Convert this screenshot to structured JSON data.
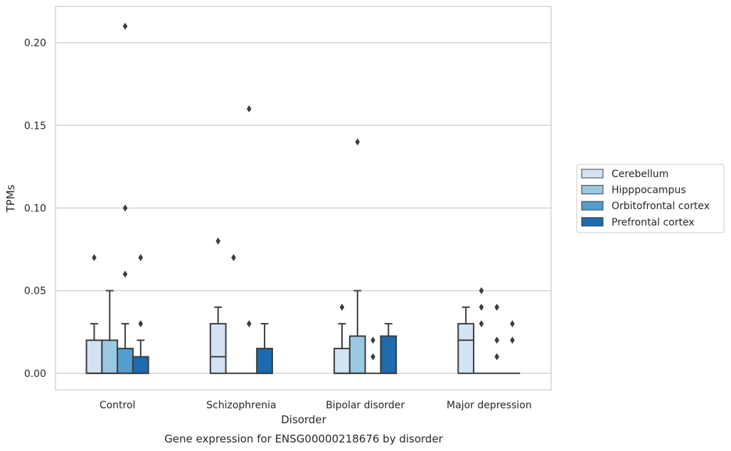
{
  "chart_data": {
    "type": "box",
    "title": "",
    "caption": "Gene expression for ENSG00000218676 by disorder",
    "xlabel": "Disorder",
    "ylabel": "TPMs",
    "ylim": [
      -0.01,
      0.222
    ],
    "yticks": [
      0.0,
      0.05,
      0.1,
      0.15,
      0.2
    ],
    "ytick_labels": [
      "0.00",
      "0.05",
      "0.10",
      "0.15",
      "0.20"
    ],
    "grid": "horizontal",
    "legend_position": "right",
    "categories": [
      "Control",
      "Schizophrenia",
      "Bipolar disorder",
      "Major depression"
    ],
    "series": [
      {
        "name": "Cerebellum",
        "color": "#d2e3f3",
        "boxes": [
          {
            "q1": 0.0,
            "median": 0.0,
            "q3": 0.02,
            "whisker_low": 0.0,
            "whisker_high": 0.03,
            "outliers": [
              0.07
            ]
          },
          {
            "q1": 0.0,
            "median": 0.01,
            "q3": 0.03,
            "whisker_low": 0.0,
            "whisker_high": 0.04,
            "outliers": [
              0.08
            ]
          },
          {
            "q1": 0.0,
            "median": 0.0,
            "q3": 0.015,
            "whisker_low": 0.0,
            "whisker_high": 0.03,
            "outliers": [
              0.04
            ]
          },
          {
            "q1": 0.0,
            "median": 0.02,
            "q3": 0.03,
            "whisker_low": 0.0,
            "whisker_high": 0.04,
            "outliers": []
          }
        ]
      },
      {
        "name": "Hipppocampus",
        "color": "#9ac8e0",
        "boxes": [
          {
            "q1": 0.0,
            "median": 0.0,
            "q3": 0.02,
            "whisker_low": 0.0,
            "whisker_high": 0.05,
            "outliers": []
          },
          {
            "q1": 0.0,
            "median": 0.0,
            "q3": 0.0,
            "whisker_low": 0.0,
            "whisker_high": 0.0,
            "outliers": [
              0.07
            ]
          },
          {
            "q1": 0.0,
            "median": 0.0,
            "q3": 0.0225,
            "whisker_low": 0.0,
            "whisker_high": 0.05,
            "outliers": [
              0.14
            ]
          },
          {
            "q1": 0.0,
            "median": 0.0,
            "q3": 0.0,
            "whisker_low": 0.0,
            "whisker_high": 0.0,
            "outliers": [
              0.05,
              0.04,
              0.03
            ]
          }
        ]
      },
      {
        "name": "Orbitofrontal cortex",
        "color": "#529dcc",
        "boxes": [
          {
            "q1": 0.0,
            "median": 0.0,
            "q3": 0.015,
            "whisker_low": 0.0,
            "whisker_high": 0.03,
            "outliers": [
              0.21,
              0.1,
              0.06
            ]
          },
          {
            "q1": 0.0,
            "median": 0.0,
            "q3": 0.0,
            "whisker_low": 0.0,
            "whisker_high": 0.0,
            "outliers": [
              0.16,
              0.03
            ]
          },
          {
            "q1": 0.0,
            "median": 0.0,
            "q3": 0.0,
            "whisker_low": 0.0,
            "whisker_high": 0.0,
            "outliers": [
              0.02,
              0.01
            ]
          },
          {
            "q1": 0.0,
            "median": 0.0,
            "q3": 0.0,
            "whisker_low": 0.0,
            "whisker_high": 0.0,
            "outliers": [
              0.04,
              0.02,
              0.01
            ]
          }
        ]
      },
      {
        "name": "Prefrontal cortex",
        "color": "#1c6aaf",
        "boxes": [
          {
            "q1": 0.0,
            "median": 0.0,
            "q3": 0.01,
            "whisker_low": 0.0,
            "whisker_high": 0.02,
            "outliers": [
              0.07,
              0.03
            ]
          },
          {
            "q1": 0.0,
            "median": 0.0,
            "q3": 0.015,
            "whisker_low": 0.0,
            "whisker_high": 0.03,
            "outliers": []
          },
          {
            "q1": 0.0,
            "median": 0.0,
            "q3": 0.0225,
            "whisker_low": 0.0,
            "whisker_high": 0.03,
            "outliers": []
          },
          {
            "q1": 0.0,
            "median": 0.0,
            "q3": 0.0,
            "whisker_low": 0.0,
            "whisker_high": 0.0,
            "outliers": [
              0.03,
              0.02
            ]
          }
        ]
      }
    ]
  }
}
